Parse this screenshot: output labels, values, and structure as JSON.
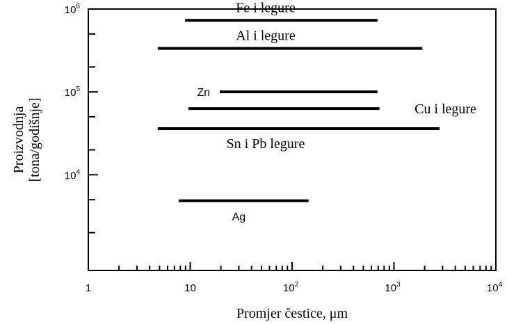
{
  "chart_data": {
    "type": "range-bar",
    "xlabel": "Promjer čestice, μm",
    "ylabel_line1": "Proizvodnja",
    "ylabel_line2": "[tona/godišnje]",
    "x_scale": "log",
    "y_scale": "log",
    "xlim": [
      1,
      10000
    ],
    "ylim": [
      700,
      1000000
    ],
    "x_ticks": [
      {
        "value": 1,
        "base": "1",
        "exp": ""
      },
      {
        "value": 10,
        "base": "10",
        "exp": ""
      },
      {
        "value": 100,
        "base": "10",
        "exp": "2"
      },
      {
        "value": 1000,
        "base": "10",
        "exp": "3"
      },
      {
        "value": 10000,
        "base": "10",
        "exp": "4"
      }
    ],
    "y_ticks": [
      {
        "value": 10000,
        "base": "10",
        "exp": "4"
      },
      {
        "value": 100000,
        "base": "10",
        "exp": "5"
      },
      {
        "value": 1000000,
        "base": "10",
        "exp": "6"
      }
    ],
    "grid": false,
    "series": [
      {
        "name": "Fe i legure",
        "x_min": 8.9,
        "x_max": 690,
        "y": 730000,
        "label_x": 55,
        "label_pos": "above",
        "label_font": "serif"
      },
      {
        "name": "Al i legure",
        "x_min": 4.8,
        "x_max": 1900,
        "y": 335000,
        "label_x": 55,
        "label_pos": "above",
        "label_font": "serif"
      },
      {
        "name": "Zn",
        "x_min": 19.5,
        "x_max": 690,
        "y": 100000,
        "label_x": 10,
        "label_pos": "left",
        "label_font": "sans"
      },
      {
        "name": "Cu i legure",
        "x_min": 9.6,
        "x_max": 720,
        "y": 63000,
        "label_x": 3200,
        "label_pos": "right",
        "label_font": "serif"
      },
      {
        "name": "Sn i Pb legure",
        "x_min": 4.8,
        "x_max": 2800,
        "y": 36000,
        "label_x": 55,
        "label_pos": "below",
        "label_font": "serif"
      },
      {
        "name": "Ag",
        "x_min": 7.7,
        "x_max": 145,
        "y": 4850,
        "label_x": 30,
        "label_pos": "below",
        "label_font": "sans"
      }
    ]
  }
}
